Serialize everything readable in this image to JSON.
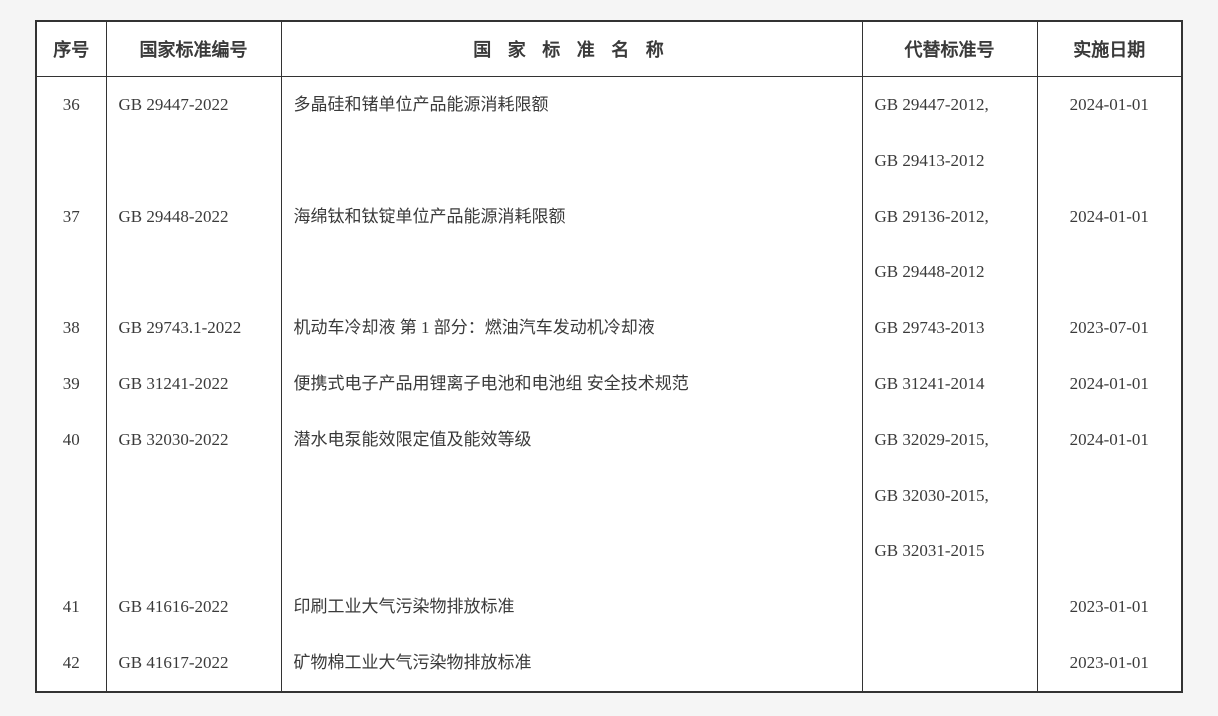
{
  "table": {
    "headers": {
      "seq": "序号",
      "stdnum": "国家标准编号",
      "name": "国 家 标 准 名 称",
      "replace": "代替标准号",
      "date": "实施日期"
    },
    "rows": [
      {
        "seq": "36",
        "stdnum": "GB 29447-2022",
        "name": "多晶硅和锗单位产品能源消耗限额",
        "replace": [
          "GB 29447-2012,",
          "GB 29413-2012"
        ],
        "date": "2024-01-01"
      },
      {
        "seq": "37",
        "stdnum": "GB 29448-2022",
        "name": "海绵钛和钛锭单位产品能源消耗限额",
        "replace": [
          "GB 29136-2012,",
          "GB 29448-2012"
        ],
        "date": "2024-01-01"
      },
      {
        "seq": "38",
        "stdnum": "GB 29743.1-2022",
        "name": "机动车冷却液 第 1 部分：燃油汽车发动机冷却液",
        "replace": [
          "GB 29743-2013"
        ],
        "date": "2023-07-01"
      },
      {
        "seq": "39",
        "stdnum": "GB 31241-2022",
        "name": "便携式电子产品用锂离子电池和电池组 安全技术规范",
        "replace": [
          "GB 31241-2014"
        ],
        "date": "2024-01-01"
      },
      {
        "seq": "40",
        "stdnum": "GB 32030-2022",
        "name": "潜水电泵能效限定值及能效等级",
        "replace": [
          "GB 32029-2015,",
          "GB 32030-2015,",
          "GB 32031-2015"
        ],
        "date": "2024-01-01"
      },
      {
        "seq": "41",
        "stdnum": "GB 41616-2022",
        "name": "印刷工业大气污染物排放标准",
        "replace": [
          ""
        ],
        "date": "2023-01-01"
      },
      {
        "seq": "42",
        "stdnum": "GB 41617-2022",
        "name": "矿物棉工业大气污染物排放标准",
        "replace": [
          ""
        ],
        "date": "2023-01-01"
      }
    ]
  },
  "styling": {
    "background_color": "#f5f5f5",
    "table_border_color": "#333333",
    "text_color": "#3a3a3a",
    "header_fontsize": 18,
    "cell_fontsize": 17
  }
}
